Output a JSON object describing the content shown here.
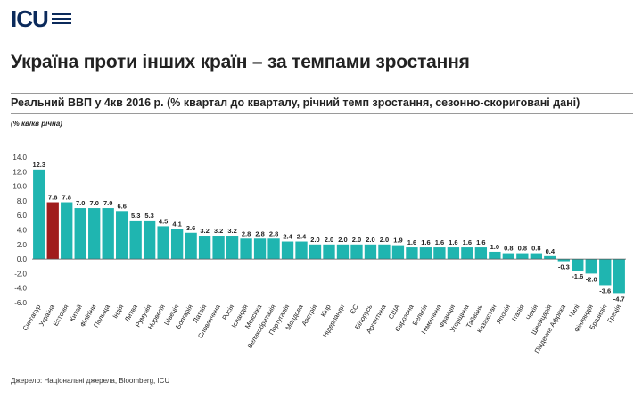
{
  "brand": {
    "logo_text": "ICU",
    "accent": "#0b2a5b"
  },
  "headline": "Україна проти інших країн – за темпами зростання",
  "subtitle": "Реальний ВВП у 4кв 2016 р. (% квартал до кварталу, річний темп зростання, сезонно-скориговані дані)",
  "source": "Джерело: Національні джерела, Bloomberg, ICU",
  "chart_data": {
    "type": "bar",
    "ylabel": "(% кв/кв річна)",
    "ylim": [
      -6.0,
      14.0
    ],
    "yticks": [
      "-6.0",
      "-4.0",
      "-2.0",
      "0.0",
      "2.0",
      "4.0",
      "6.0",
      "8.0",
      "10.0",
      "12.0",
      "14.0"
    ],
    "grid": false,
    "bar_color": "#1fb5b0",
    "highlight_color": "#a01c1c",
    "highlight_category": "Україна",
    "categories": [
      "Сингапур",
      "Україна",
      "Естонія",
      "Китай",
      "Філіпіни",
      "Польща",
      "Індія",
      "Литва",
      "Румунія",
      "Норвегія",
      "Швеція",
      "Болгарія",
      "Латвія",
      "Словаччина",
      "Росія",
      "Ісландія",
      "Мексика",
      "Великобританія",
      "Португалія",
      "Молдова",
      "Австрія",
      "Кіпр",
      "Нідерланди",
      "ЄС",
      "Білорусь",
      "Аргентина",
      "США",
      "Єврозона",
      "Бельгія",
      "Німеччина",
      "Франція",
      "Угорщина",
      "Тайвань",
      "Казахстан",
      "Японія",
      "Італія",
      "Чехія",
      "Швейцарія",
      "Південна Африка",
      "Чилі",
      "Фінляндія",
      "Бразилія",
      "Греція"
    ],
    "values": [
      12.3,
      7.8,
      7.8,
      7.0,
      7.0,
      7.0,
      6.6,
      5.3,
      5.3,
      4.5,
      4.1,
      3.6,
      3.2,
      3.2,
      3.2,
      2.8,
      2.8,
      2.8,
      2.4,
      2.4,
      2.0,
      2.0,
      2.0,
      2.0,
      2.0,
      2.0,
      1.9,
      1.6,
      1.6,
      1.6,
      1.6,
      1.6,
      1.6,
      1.0,
      0.8,
      0.8,
      0.8,
      0.4,
      -0.3,
      -1.6,
      -2.0,
      -3.6,
      -4.7
    ],
    "value_labels": [
      "12.3",
      "7.8",
      "7.8",
      "7.0",
      "7.0",
      "7.0",
      "6.6",
      "5.3",
      "5.3",
      "4.5",
      "4.1",
      "3.6",
      "3.2",
      "3.2",
      "3.2",
      "2.8",
      "2.8",
      "2.8",
      "2.4",
      "2.4",
      "2.0",
      "2.0",
      "2.0",
      "2.0",
      "2.0",
      "2.0",
      "1.9",
      "1.6",
      "1.6",
      "1.6",
      "1.6",
      "1.6",
      "1.6",
      "1.0",
      "0.8",
      "0.8",
      "0.8",
      "0.4",
      "-0.3",
      "-1.6",
      "-2.0",
      "-3.6",
      "-4.7"
    ]
  }
}
